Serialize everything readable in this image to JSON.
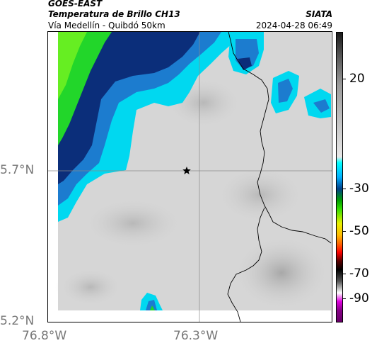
{
  "header": {
    "satellite": "GOES-EAST",
    "product": "Temperatura de Brillo CH13",
    "route": "Vía Medellín - Quibdó 50km",
    "org": "SIATA",
    "datetime": "2024-04-28 06:49"
  },
  "map": {
    "y_ticks": [
      "5.7°N",
      "5.2°N"
    ],
    "x_ticks": [
      "76.8°W",
      "76.3°W"
    ],
    "marker_icon": "star-icon",
    "land_color": "#d9d9d9"
  },
  "colorbar": {
    "labels": [
      "20",
      "-30",
      "-50",
      "-70",
      "-90"
    ],
    "stops": [
      "#c8c8c8",
      "#00ffff",
      "#0066ff",
      "#003366",
      "#00ff00",
      "#ffff00",
      "#ff6600",
      "#ff0000",
      "#000000",
      "#ffffff",
      "#cc00cc"
    ]
  }
}
